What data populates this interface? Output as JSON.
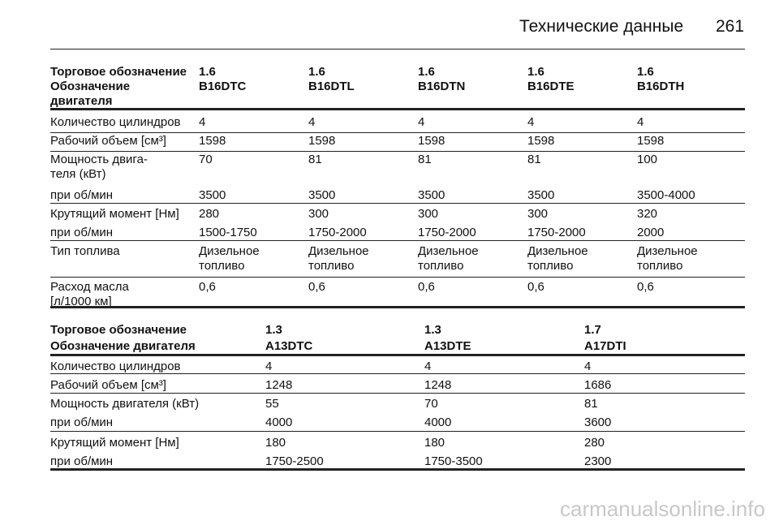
{
  "header": {
    "title": "Технические данные",
    "page_number": "261"
  },
  "table1": {
    "header_rows": [
      [
        "Торговое обозначение",
        "1.6",
        "1.6",
        "1.6",
        "1.6",
        "1.6"
      ],
      [
        "Обозначение\nдвигателя",
        "B16DTC",
        "B16DTL",
        "B16DTN",
        "B16DTE",
        "B16DTH"
      ]
    ],
    "rows": [
      [
        "Количество цилиндров",
        "4",
        "4",
        "4",
        "4",
        "4"
      ],
      [
        "Рабочий объем [см³]",
        "1598",
        "1598",
        "1598",
        "1598",
        "1598"
      ],
      [
        "Мощность двига-\nтеля (кВт)",
        "70",
        "81",
        "81",
        "81",
        "100"
      ],
      [
        "при об/мин",
        "3500",
        "3500",
        "3500",
        "3500",
        "3500-4000"
      ],
      [
        "Крутящий момент [Нм]",
        "280",
        "300",
        "300",
        "300",
        "320"
      ],
      [
        "при об/мин",
        "1500-1750",
        "1750-2000",
        "1750-2000",
        "1750-2000",
        "2000"
      ],
      [
        "Тип топлива",
        "Дизельное\nтопливо",
        "Дизельное\nтопливо",
        "Дизельное\nтопливо",
        "Дизельное\nтопливо",
        "Дизельное\nтопливо"
      ],
      [
        "Расход масла\n[л/1000 км]",
        "0,6",
        "0,6",
        "0,6",
        "0,6",
        "0,6"
      ]
    ]
  },
  "table2": {
    "header_rows": [
      [
        "Торговое обозначение",
        "1.3",
        "1.3",
        "1.7"
      ],
      [
        "Обозначение двигателя",
        "A13DTC",
        "A13DTE",
        "A17DTI"
      ]
    ],
    "rows": [
      [
        "Количество цилиндров",
        "4",
        "4",
        "4"
      ],
      [
        "Рабочий объем [см³]",
        "1248",
        "1248",
        "1686"
      ],
      [
        "Мощность двигателя (кВт)",
        "55",
        "70",
        "81"
      ],
      [
        "при об/мин",
        "4000",
        "4000",
        "3600"
      ],
      [
        "Крутящий момент [Нм]",
        "180",
        "180",
        "280"
      ],
      [
        "при об/мин",
        "1750-2500",
        "1750-3500",
        "2300"
      ]
    ]
  },
  "watermark": "carmanualsonline.info"
}
